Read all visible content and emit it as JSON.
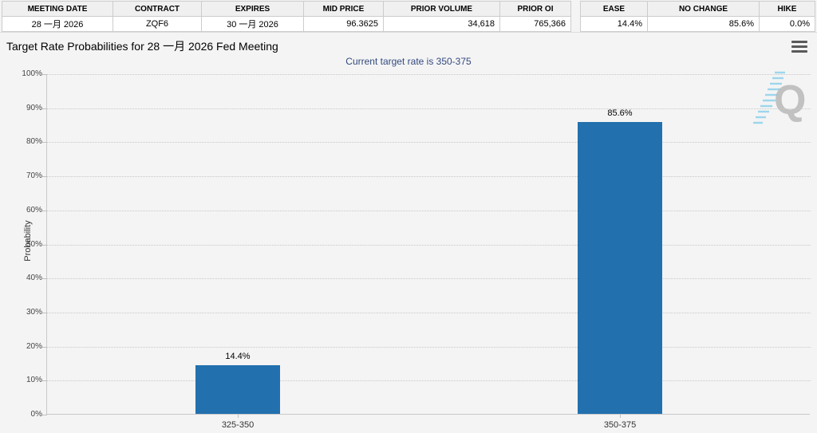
{
  "contract_table": {
    "headers": [
      "MEETING DATE",
      "CONTRACT",
      "EXPIRES",
      "MID PRICE",
      "PRIOR VOLUME",
      "PRIOR OI"
    ],
    "values": [
      "28 一月 2026",
      "ZQF6",
      "30 一月 2026",
      "96.3625",
      "34,618",
      "765,366"
    ]
  },
  "probability_table": {
    "headers": [
      "EASE",
      "NO CHANGE",
      "HIKE"
    ],
    "values": [
      "14.4%",
      "85.6%",
      "0.0%"
    ]
  },
  "chart": {
    "menu_icon": "hamburger-menu-icon",
    "watermark_letter": "Q"
  },
  "chart_data": {
    "type": "bar",
    "title": "Target Rate Probabilities for 28 一月 2026 Fed Meeting",
    "subtitle": "Current target rate is 350-375",
    "categories": [
      "325-350",
      "350-375"
    ],
    "values": [
      14.4,
      85.6
    ],
    "value_labels": [
      "14.4%",
      "85.6%"
    ],
    "xlabel": "",
    "ylabel": "Probability",
    "ylim": [
      0,
      100
    ],
    "ytick_step": 10,
    "ytick_labels": [
      "0%",
      "10%",
      "20%",
      "30%",
      "40%",
      "50%",
      "60%",
      "70%",
      "80%",
      "90%",
      "100%"
    ],
    "grid": "dotted-horizontal",
    "legend": "none",
    "bar_color": "#2271ae"
  },
  "colors": {
    "bar": "#2271ae",
    "subtitle_text": "#32497f",
    "page_background": "#f4f4f4",
    "table_header_background": "#f0f0f0",
    "axis_line": "#c9c9c9",
    "watermark_gray": "#b9b9b9",
    "watermark_blue": "#7fcdea"
  }
}
